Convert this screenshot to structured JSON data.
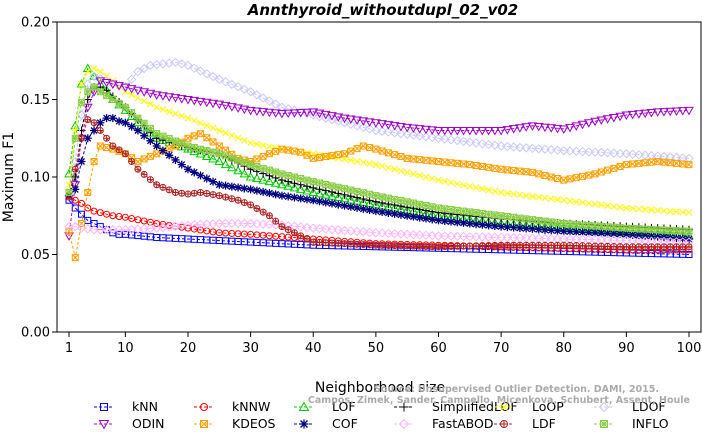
{
  "chart_data": {
    "type": "line",
    "title": "Annthyroid_withoutdupl_02_v02",
    "xlabel": "Neighborhood size",
    "ylabel": "Maximum F1",
    "xlim": [
      1,
      100
    ],
    "ylim": [
      0,
      0.2
    ],
    "x_ticks": [
      "1",
      "10",
      "20",
      "30",
      "40",
      "50",
      "60",
      "70",
      "80",
      "90",
      "100"
    ],
    "y_ticks": [
      "0.00",
      "0.05",
      "0.10",
      "0.15",
      "0.20"
    ],
    "grid": false,
    "legend_position": "bottom",
    "series": [
      {
        "name": "kNN",
        "color": "#0000ff",
        "marker": "square",
        "points": [
          [
            1,
            0.085
          ],
          [
            2,
            0.08
          ],
          [
            3,
            0.076
          ],
          [
            4,
            0.072
          ],
          [
            5,
            0.07
          ],
          [
            6,
            0.068
          ],
          [
            7,
            0.066
          ],
          [
            8,
            0.064
          ],
          [
            9,
            0.063
          ],
          [
            10,
            0.063
          ],
          [
            15,
            0.061
          ],
          [
            20,
            0.06
          ],
          [
            25,
            0.059
          ],
          [
            30,
            0.058
          ],
          [
            40,
            0.056
          ],
          [
            50,
            0.055
          ],
          [
            60,
            0.054
          ],
          [
            70,
            0.053
          ],
          [
            80,
            0.052
          ],
          [
            90,
            0.051
          ],
          [
            100,
            0.05
          ]
        ]
      },
      {
        "name": "kNNW",
        "color": "#ff0000",
        "marker": "circle",
        "points": [
          [
            1,
            0.087
          ],
          [
            2,
            0.085
          ],
          [
            3,
            0.083
          ],
          [
            4,
            0.08
          ],
          [
            5,
            0.078
          ],
          [
            6,
            0.077
          ],
          [
            7,
            0.076
          ],
          [
            8,
            0.075
          ],
          [
            10,
            0.074
          ],
          [
            15,
            0.07
          ],
          [
            20,
            0.067
          ],
          [
            25,
            0.064
          ],
          [
            30,
            0.063
          ],
          [
            40,
            0.06
          ],
          [
            50,
            0.057
          ],
          [
            60,
            0.056
          ],
          [
            70,
            0.055
          ],
          [
            80,
            0.054
          ],
          [
            90,
            0.053
          ],
          [
            100,
            0.053
          ]
        ]
      },
      {
        "name": "LOF",
        "color": "#00cc00",
        "marker": "triangle",
        "points": [
          [
            1,
            0.102
          ],
          [
            2,
            0.133
          ],
          [
            3,
            0.16
          ],
          [
            4,
            0.17
          ],
          [
            5,
            0.165
          ],
          [
            6,
            0.16
          ],
          [
            7,
            0.156
          ],
          [
            8,
            0.15
          ],
          [
            10,
            0.143
          ],
          [
            12,
            0.135
          ],
          [
            15,
            0.125
          ],
          [
            20,
            0.118
          ],
          [
            25,
            0.11
          ],
          [
            30,
            0.1
          ],
          [
            35,
            0.095
          ],
          [
            40,
            0.09
          ],
          [
            50,
            0.082
          ],
          [
            60,
            0.075
          ],
          [
            70,
            0.07
          ],
          [
            80,
            0.067
          ],
          [
            90,
            0.064
          ],
          [
            100,
            0.062
          ]
        ]
      },
      {
        "name": "SimplifiedLOF",
        "color": "#000000",
        "marker": "plus",
        "points": [
          [
            1,
            0.088
          ],
          [
            2,
            0.1
          ],
          [
            3,
            0.13
          ],
          [
            4,
            0.15
          ],
          [
            5,
            0.158
          ],
          [
            6,
            0.158
          ],
          [
            7,
            0.156
          ],
          [
            8,
            0.152
          ],
          [
            10,
            0.145
          ],
          [
            13,
            0.133
          ],
          [
            15,
            0.125
          ],
          [
            20,
            0.119
          ],
          [
            25,
            0.115
          ],
          [
            30,
            0.105
          ],
          [
            35,
            0.098
          ],
          [
            40,
            0.093
          ],
          [
            50,
            0.084
          ],
          [
            60,
            0.077
          ],
          [
            70,
            0.073
          ],
          [
            80,
            0.07
          ],
          [
            90,
            0.068
          ],
          [
            100,
            0.066
          ]
        ]
      },
      {
        "name": "LoOP",
        "color": "#ffff00",
        "marker": "x",
        "points": [
          [
            1,
            0.095
          ],
          [
            2,
            0.13
          ],
          [
            3,
            0.16
          ],
          [
            4,
            0.168
          ],
          [
            5,
            0.17
          ],
          [
            6,
            0.168
          ],
          [
            8,
            0.162
          ],
          [
            10,
            0.155
          ],
          [
            15,
            0.145
          ],
          [
            20,
            0.138
          ],
          [
            25,
            0.13
          ],
          [
            30,
            0.122
          ],
          [
            35,
            0.118
          ],
          [
            40,
            0.115
          ],
          [
            50,
            0.108
          ],
          [
            60,
            0.098
          ],
          [
            70,
            0.09
          ],
          [
            80,
            0.085
          ],
          [
            90,
            0.08
          ],
          [
            100,
            0.077
          ]
        ]
      },
      {
        "name": "LDOF",
        "color": "#c8c8ff",
        "marker": "diamond",
        "points": [
          [
            1,
            0.088
          ],
          [
            2,
            0.11
          ],
          [
            3,
            0.14
          ],
          [
            4,
            0.16
          ],
          [
            5,
            0.165
          ],
          [
            8,
            0.16
          ],
          [
            10,
            0.158
          ],
          [
            12,
            0.168
          ],
          [
            14,
            0.172
          ],
          [
            16,
            0.173
          ],
          [
            18,
            0.174
          ],
          [
            20,
            0.172
          ],
          [
            25,
            0.163
          ],
          [
            30,
            0.155
          ],
          [
            35,
            0.145
          ],
          [
            40,
            0.14
          ],
          [
            45,
            0.135
          ],
          [
            50,
            0.13
          ],
          [
            60,
            0.125
          ],
          [
            70,
            0.12
          ],
          [
            80,
            0.117
          ],
          [
            90,
            0.115
          ],
          [
            100,
            0.112
          ]
        ]
      },
      {
        "name": "ODIN",
        "color": "#a000c8",
        "marker": "triangle-down",
        "points": [
          [
            1,
            0.062
          ],
          [
            2,
            0.095
          ],
          [
            3,
            0.125
          ],
          [
            4,
            0.145
          ],
          [
            5,
            0.155
          ],
          [
            6,
            0.162
          ],
          [
            8,
            0.16
          ],
          [
            10,
            0.158
          ],
          [
            15,
            0.153
          ],
          [
            20,
            0.15
          ],
          [
            25,
            0.147
          ],
          [
            30,
            0.143
          ],
          [
            35,
            0.141
          ],
          [
            40,
            0.142
          ],
          [
            45,
            0.138
          ],
          [
            50,
            0.135
          ],
          [
            55,
            0.132
          ],
          [
            60,
            0.13
          ],
          [
            70,
            0.13
          ],
          [
            75,
            0.133
          ],
          [
            80,
            0.131
          ],
          [
            85,
            0.136
          ],
          [
            90,
            0.14
          ],
          [
            95,
            0.142
          ],
          [
            100,
            0.143
          ]
        ]
      },
      {
        "name": "KDEOS",
        "color": "#ffa000",
        "marker": "square-x",
        "points": [
          [
            1,
            0.065
          ],
          [
            2,
            0.048
          ],
          [
            3,
            0.07
          ],
          [
            4,
            0.09
          ],
          [
            5,
            0.11
          ],
          [
            6,
            0.12
          ],
          [
            8,
            0.118
          ],
          [
            10,
            0.115
          ],
          [
            12,
            0.11
          ],
          [
            15,
            0.115
          ],
          [
            18,
            0.12
          ],
          [
            20,
            0.125
          ],
          [
            22,
            0.128
          ],
          [
            25,
            0.12
          ],
          [
            28,
            0.112
          ],
          [
            30,
            0.11
          ],
          [
            33,
            0.115
          ],
          [
            35,
            0.118
          ],
          [
            38,
            0.116
          ],
          [
            40,
            0.112
          ],
          [
            45,
            0.115
          ],
          [
            48,
            0.12
          ],
          [
            50,
            0.118
          ],
          [
            55,
            0.112
          ],
          [
            60,
            0.11
          ],
          [
            65,
            0.108
          ],
          [
            70,
            0.105
          ],
          [
            75,
            0.103
          ],
          [
            80,
            0.098
          ],
          [
            85,
            0.102
          ],
          [
            90,
            0.108
          ],
          [
            95,
            0.11
          ],
          [
            100,
            0.108
          ]
        ]
      },
      {
        "name": "COF",
        "color": "#000080",
        "marker": "asterisk",
        "points": [
          [
            1,
            0.088
          ],
          [
            2,
            0.092
          ],
          [
            3,
            0.11
          ],
          [
            4,
            0.125
          ],
          [
            5,
            0.13
          ],
          [
            6,
            0.135
          ],
          [
            7,
            0.138
          ],
          [
            8,
            0.138
          ],
          [
            9,
            0.136
          ],
          [
            10,
            0.135
          ],
          [
            12,
            0.13
          ],
          [
            15,
            0.12
          ],
          [
            20,
            0.105
          ],
          [
            25,
            0.095
          ],
          [
            30,
            0.092
          ],
          [
            35,
            0.088
          ],
          [
            40,
            0.085
          ],
          [
            50,
            0.078
          ],
          [
            60,
            0.072
          ],
          [
            70,
            0.068
          ],
          [
            80,
            0.065
          ],
          [
            90,
            0.063
          ],
          [
            100,
            0.06
          ]
        ]
      },
      {
        "name": "FastABOD",
        "color": "#ffb4ff",
        "marker": "diamond",
        "points": [
          [
            1,
            0.068
          ],
          [
            2,
            0.068
          ],
          [
            3,
            0.067
          ],
          [
            5,
            0.066
          ],
          [
            10,
            0.066
          ],
          [
            15,
            0.067
          ],
          [
            20,
            0.069
          ],
          [
            25,
            0.07
          ],
          [
            30,
            0.07
          ],
          [
            35,
            0.069
          ],
          [
            40,
            0.067
          ],
          [
            50,
            0.064
          ],
          [
            60,
            0.062
          ],
          [
            70,
            0.061
          ],
          [
            80,
            0.06
          ],
          [
            90,
            0.059
          ],
          [
            100,
            0.058
          ]
        ]
      },
      {
        "name": "LDF",
        "color": "#aa2222",
        "marker": "circle-plus",
        "points": [
          [
            1,
            0.088
          ],
          [
            2,
            0.105
          ],
          [
            3,
            0.125
          ],
          [
            4,
            0.137
          ],
          [
            5,
            0.135
          ],
          [
            6,
            0.13
          ],
          [
            7,
            0.125
          ],
          [
            8,
            0.12
          ],
          [
            10,
            0.115
          ],
          [
            12,
            0.105
          ],
          [
            15,
            0.095
          ],
          [
            18,
            0.09
          ],
          [
            20,
            0.089
          ],
          [
            22,
            0.09
          ],
          [
            25,
            0.088
          ],
          [
            28,
            0.085
          ],
          [
            30,
            0.082
          ],
          [
            33,
            0.075
          ],
          [
            35,
            0.068
          ],
          [
            38,
            0.062
          ],
          [
            40,
            0.058
          ],
          [
            50,
            0.056
          ],
          [
            60,
            0.055
          ],
          [
            70,
            0.056
          ],
          [
            80,
            0.056
          ],
          [
            90,
            0.055
          ],
          [
            100,
            0.055
          ]
        ]
      },
      {
        "name": "INFLO",
        "color": "#88cc44",
        "marker": "square-star",
        "points": [
          [
            1,
            0.09
          ],
          [
            2,
            0.125
          ],
          [
            3,
            0.148
          ],
          [
            4,
            0.155
          ],
          [
            5,
            0.158
          ],
          [
            6,
            0.155
          ],
          [
            8,
            0.15
          ],
          [
            10,
            0.145
          ],
          [
            12,
            0.138
          ],
          [
            15,
            0.128
          ],
          [
            20,
            0.12
          ],
          [
            25,
            0.115
          ],
          [
            30,
            0.108
          ],
          [
            35,
            0.102
          ],
          [
            40,
            0.097
          ],
          [
            50,
            0.088
          ],
          [
            60,
            0.08
          ],
          [
            70,
            0.075
          ],
          [
            80,
            0.07
          ],
          [
            90,
            0.067
          ],
          [
            100,
            0.065
          ]
        ]
      }
    ]
  },
  "watermark": {
    "line1": "Source: Unsupervised Outlier Detection. DAMI, 2015.",
    "line2": "Campos, Zimek, Sander, Campello, Micenkova, Schubert, Assent, Houle"
  }
}
